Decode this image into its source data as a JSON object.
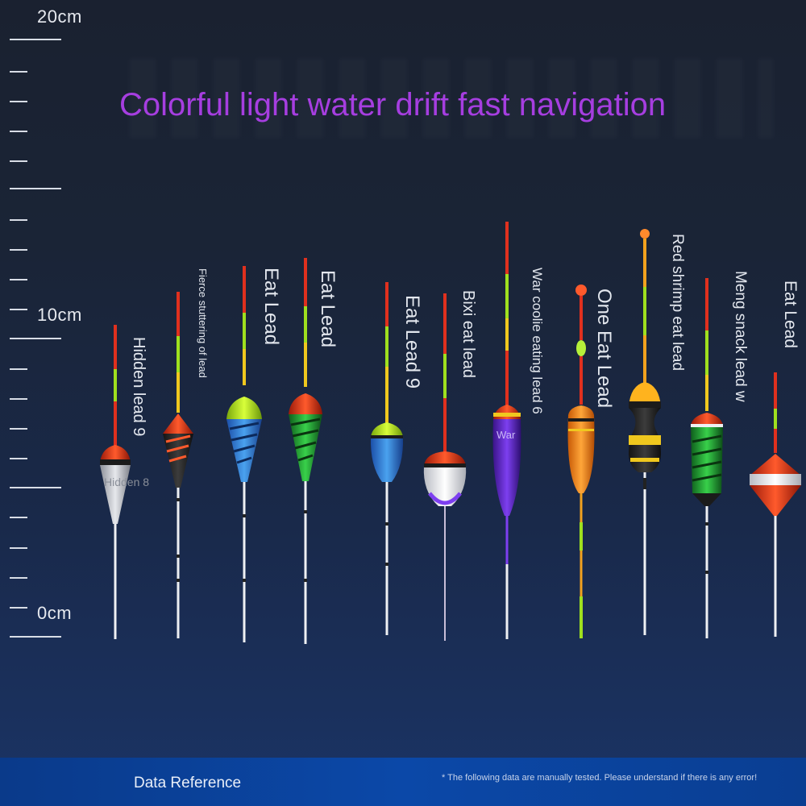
{
  "headline": "Colorful light water drift fast navigation",
  "ruler": {
    "labels": [
      "20cm",
      "10cm",
      "0cm"
    ]
  },
  "floats": [
    {
      "label": "Hidden lead 9",
      "inner_text": "Hidden 8"
    },
    {
      "label": "Fierce stuttering of lead"
    },
    {
      "label": "Eat Lead"
    },
    {
      "label": "Eat Lead"
    },
    {
      "label": "Eat Lead 9"
    },
    {
      "label": "Bixi eat lead"
    },
    {
      "label": "War coolie eating lead 6",
      "inner_text": "War"
    },
    {
      "label": "One Eat Lead"
    },
    {
      "label": "Red shrimp eat lead"
    },
    {
      "label": "Meng snack lead w"
    },
    {
      "label": "Eat Lead"
    }
  ],
  "colors": {
    "headline": "#a63ee0",
    "footer": "#0b48a8",
    "antenna_red": "#e0301e",
    "antenna_green": "#9fe01e",
    "antenna_yellow": "#f0c81e"
  },
  "footer": {
    "title": "Data Reference",
    "note": "* The following data are manually tested. Please understand if there is any error!"
  }
}
